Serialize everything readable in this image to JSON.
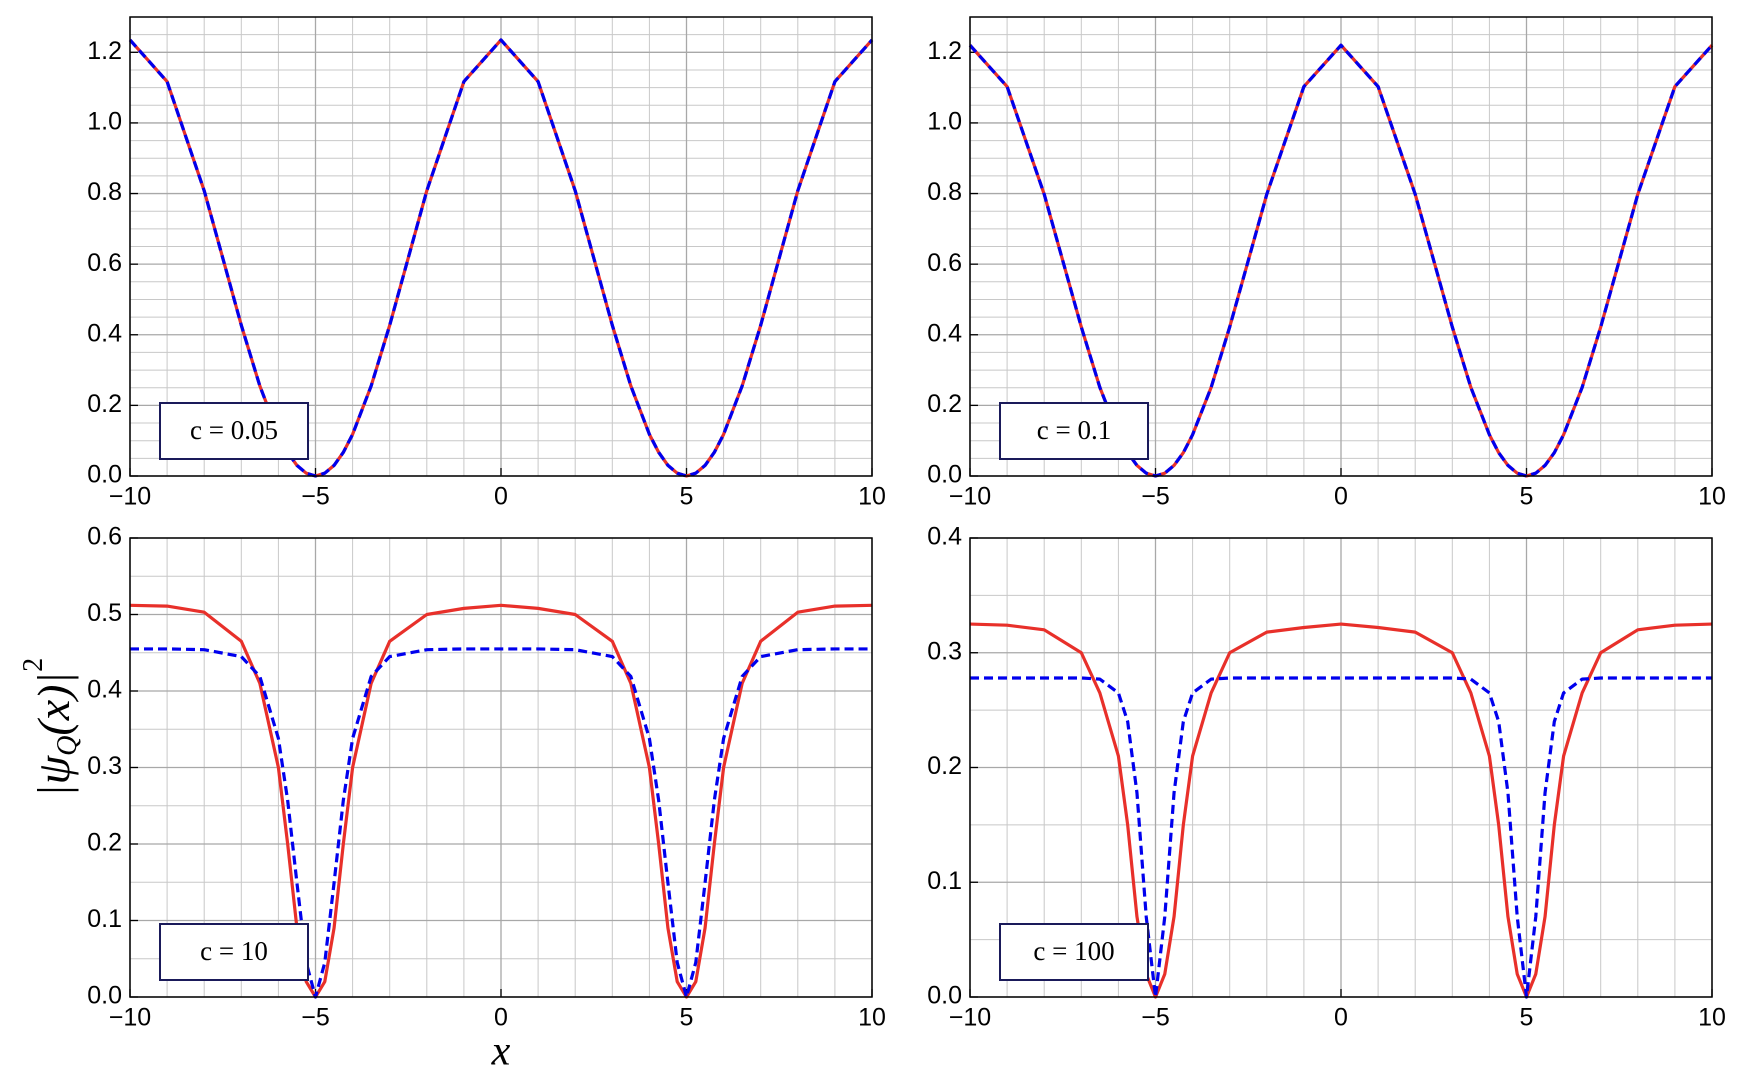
{
  "chart_data": [
    {
      "type": "line",
      "annotation": "c = 0.05",
      "x": [
        -10,
        -9,
        -8,
        -7,
        -6.5,
        -6,
        -5.75,
        -5.5,
        -5.25,
        -5,
        -4.75,
        -4.5,
        -4.25,
        -4,
        -3.5,
        -3,
        -2,
        -1,
        0,
        1,
        2,
        3,
        3.5,
        4,
        4.25,
        4.5,
        4.75,
        5,
        5.25,
        5.5,
        5.75,
        6,
        6.5,
        7,
        8,
        9,
        10
      ],
      "series": [
        {
          "color": "#e8302a",
          "style": "solid",
          "values": [
            1.235,
            1.117,
            0.808,
            0.427,
            0.255,
            0.118,
            0.067,
            0.03,
            0.008,
            0,
            0.008,
            0.03,
            0.067,
            0.118,
            0.255,
            0.427,
            0.808,
            1.117,
            1.235,
            1.117,
            0.808,
            0.427,
            0.255,
            0.118,
            0.067,
            0.03,
            0.008,
            0,
            0.008,
            0.03,
            0.067,
            0.118,
            0.255,
            0.427,
            0.808,
            1.117,
            1.235
          ]
        },
        {
          "color": "#0000ee",
          "style": "dashed",
          "values": [
            1.235,
            1.117,
            0.808,
            0.427,
            0.255,
            0.118,
            0.067,
            0.03,
            0.008,
            0,
            0.008,
            0.03,
            0.067,
            0.118,
            0.255,
            0.427,
            0.808,
            1.117,
            1.235,
            1.117,
            0.808,
            0.427,
            0.255,
            0.118,
            0.067,
            0.03,
            0.008,
            0,
            0.008,
            0.03,
            0.067,
            0.118,
            0.255,
            0.427,
            0.808,
            1.117,
            1.235
          ]
        }
      ],
      "xlim": [
        -10,
        10
      ],
      "xticks": [
        {
          "value": -10,
          "label": "−10"
        },
        {
          "value": -5,
          "label": "−5"
        },
        0,
        5,
        10
      ],
      "ylim": [
        0,
        1.3
      ],
      "yticks": [
        {
          "value": 0,
          "label": "0.0"
        },
        0.2,
        0.4,
        0.6,
        0.8,
        {
          "value": 1,
          "label": "1.0"
        },
        1.2
      ],
      "grid": true,
      "minor_grid": {
        "x": 5,
        "y": 4
      }
    },
    {
      "type": "line",
      "annotation": "c = 0.1",
      "x": [
        -10,
        -9,
        -8,
        -7,
        -6.5,
        -6,
        -5.75,
        -5.5,
        -5.25,
        -5,
        -4.75,
        -4.5,
        -4.25,
        -4,
        -3.5,
        -3,
        -2,
        -1,
        0,
        1,
        2,
        3,
        3.5,
        4,
        4.25,
        4.5,
        4.75,
        5,
        5.25,
        5.5,
        5.75,
        6,
        6.5,
        7,
        8,
        9,
        10
      ],
      "series": [
        {
          "color": "#e8302a",
          "style": "solid",
          "values": [
            1.22,
            1.103,
            0.798,
            0.422,
            0.251,
            0.117,
            0.066,
            0.03,
            0.008,
            0,
            0.008,
            0.03,
            0.066,
            0.117,
            0.251,
            0.422,
            0.798,
            1.103,
            1.22,
            1.103,
            0.798,
            0.422,
            0.251,
            0.117,
            0.066,
            0.03,
            0.008,
            0,
            0.008,
            0.03,
            0.066,
            0.117,
            0.251,
            0.422,
            0.798,
            1.103,
            1.22
          ]
        },
        {
          "color": "#0000ee",
          "style": "dashed",
          "values": [
            1.22,
            1.103,
            0.798,
            0.422,
            0.251,
            0.117,
            0.066,
            0.03,
            0.008,
            0,
            0.008,
            0.03,
            0.066,
            0.117,
            0.251,
            0.422,
            0.798,
            1.103,
            1.22,
            1.103,
            0.798,
            0.422,
            0.251,
            0.117,
            0.066,
            0.03,
            0.008,
            0,
            0.008,
            0.03,
            0.066,
            0.117,
            0.251,
            0.422,
            0.798,
            1.103,
            1.22
          ]
        }
      ],
      "xlim": [
        -10,
        10
      ],
      "xticks": [
        {
          "value": -10,
          "label": "−10"
        },
        {
          "value": -5,
          "label": "−5"
        },
        0,
        5,
        10
      ],
      "ylim": [
        0,
        1.3
      ],
      "yticks": [
        {
          "value": 0,
          "label": "0.0"
        },
        0.2,
        0.4,
        0.6,
        0.8,
        {
          "value": 1,
          "label": "1.0"
        },
        1.2
      ],
      "grid": true,
      "minor_grid": {
        "x": 5,
        "y": 4
      }
    },
    {
      "type": "line",
      "annotation": "c = 10",
      "xlabel": "x",
      "ylabel": [
        "|ψ",
        "Q",
        "(x)|",
        "2"
      ],
      "x": [
        -10,
        -9,
        -8,
        -7,
        -6.5,
        -6,
        -5.75,
        -5.5,
        -5.25,
        -5,
        -4.75,
        -4.5,
        -4.25,
        -4,
        -3.5,
        -3,
        -2,
        -1,
        0,
        1,
        2,
        3,
        3.5,
        4,
        4.25,
        4.5,
        4.75,
        5,
        5.25,
        5.5,
        5.75,
        6,
        6.5,
        7,
        8,
        9,
        10
      ],
      "series": [
        {
          "color": "#e8302a",
          "style": "solid",
          "values": [
            0.512,
            0.511,
            0.503,
            0.465,
            0.41,
            0.3,
            0.2,
            0.09,
            0.02,
            0,
            0.02,
            0.09,
            0.2,
            0.3,
            0.41,
            0.465,
            0.5,
            0.508,
            0.512,
            0.508,
            0.5,
            0.465,
            0.41,
            0.3,
            0.2,
            0.09,
            0.02,
            0,
            0.02,
            0.09,
            0.2,
            0.3,
            0.41,
            0.465,
            0.503,
            0.511,
            0.512
          ]
        },
        {
          "color": "#0000ee",
          "style": "dashed",
          "values": [
            0.455,
            0.455,
            0.454,
            0.445,
            0.419,
            0.338,
            0.257,
            0.149,
            0.045,
            0,
            0.045,
            0.149,
            0.257,
            0.338,
            0.419,
            0.445,
            0.454,
            0.455,
            0.455,
            0.455,
            0.454,
            0.445,
            0.419,
            0.338,
            0.257,
            0.149,
            0.045,
            0,
            0.045,
            0.149,
            0.257,
            0.338,
            0.419,
            0.445,
            0.454,
            0.455,
            0.455
          ]
        }
      ],
      "xlim": [
        -10,
        10
      ],
      "xticks": [
        {
          "value": -10,
          "label": "−10"
        },
        {
          "value": -5,
          "label": "−5"
        },
        0,
        5,
        10
      ],
      "ylim": [
        0,
        0.6
      ],
      "yticks": [
        {
          "value": 0,
          "label": "0.0"
        },
        0.1,
        0.2,
        0.3,
        0.4,
        0.5,
        0.6
      ],
      "grid": true,
      "minor_grid": {
        "x": 5,
        "y": 2
      }
    },
    {
      "type": "line",
      "annotation": "c = 100",
      "x": [
        -10,
        -9,
        -8,
        -7,
        -6.5,
        -6,
        -5.75,
        -5.5,
        -5.25,
        -5,
        -4.75,
        -4.5,
        -4.25,
        -4,
        -3.5,
        -3,
        -2,
        -1,
        0,
        1,
        2,
        3,
        3.5,
        4,
        4.25,
        4.5,
        4.75,
        5,
        5.25,
        5.5,
        5.75,
        6,
        6.5,
        7,
        8,
        9,
        10
      ],
      "series": [
        {
          "color": "#e8302a",
          "style": "solid",
          "values": [
            0.325,
            0.324,
            0.32,
            0.3,
            0.265,
            0.21,
            0.15,
            0.07,
            0.02,
            0,
            0.02,
            0.07,
            0.15,
            0.21,
            0.265,
            0.3,
            0.318,
            0.322,
            0.325,
            0.322,
            0.318,
            0.3,
            0.265,
            0.21,
            0.15,
            0.07,
            0.02,
            0,
            0.02,
            0.07,
            0.15,
            0.21,
            0.265,
            0.3,
            0.32,
            0.324,
            0.325
          ]
        },
        {
          "color": "#0000ee",
          "style": "dashed",
          "values": [
            0.278,
            0.278,
            0.278,
            0.278,
            0.277,
            0.265,
            0.24,
            0.178,
            0.07,
            0,
            0.07,
            0.178,
            0.24,
            0.265,
            0.277,
            0.278,
            0.278,
            0.278,
            0.278,
            0.278,
            0.278,
            0.278,
            0.277,
            0.265,
            0.24,
            0.178,
            0.07,
            0,
            0.07,
            0.178,
            0.24,
            0.265,
            0.277,
            0.278,
            0.278,
            0.278,
            0.278
          ]
        }
      ],
      "xlim": [
        -10,
        10
      ],
      "xticks": [
        {
          "value": -10,
          "label": "−10"
        },
        {
          "value": -5,
          "label": "−5"
        },
        0,
        5,
        10
      ],
      "ylim": [
        0,
        0.4
      ],
      "yticks": [
        {
          "value": 0,
          "label": "0.0"
        },
        0.1,
        0.2,
        0.3,
        0.4
      ],
      "grid": true,
      "minor_grid": {
        "x": 5,
        "y": 2
      }
    }
  ]
}
